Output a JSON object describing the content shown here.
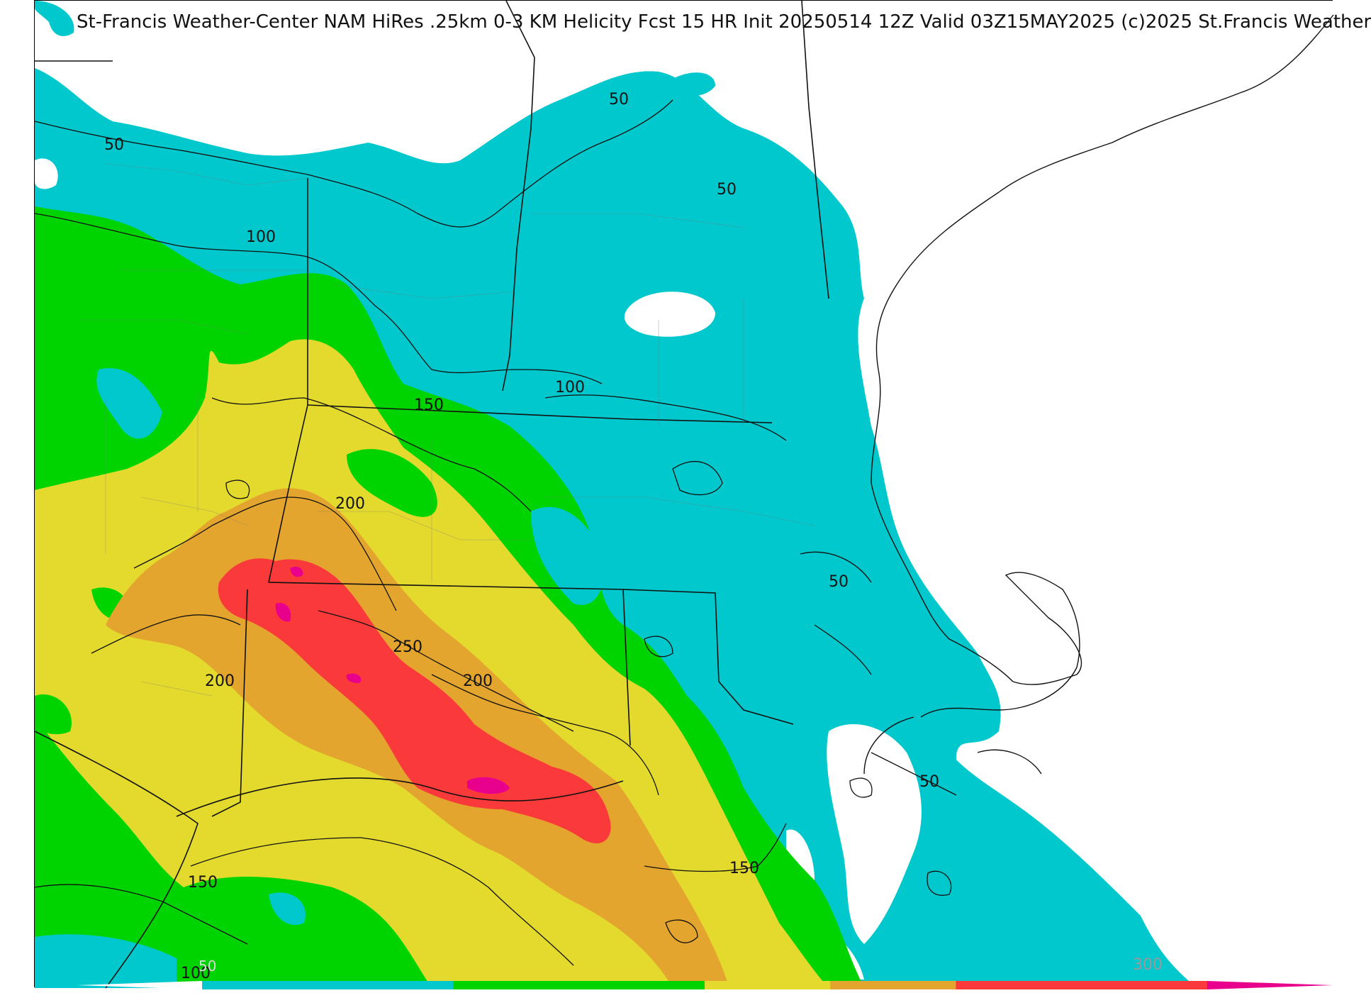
{
  "title": "St-Francis Weather-Center NAM HiRes .25km 0-3 KM Helicity Fcst 15 HR Init 20250514 12Z  Valid 03Z15MAY2025    (c)2025 St.Francis Weather",
  "colors": {
    "cyan": "#00c8cc",
    "green": "#00d400",
    "yellow": "#e4da2e",
    "orange": "#e4a52e",
    "red": "#fa3a3a",
    "magenta": "#e8008c"
  },
  "contour_labels": [
    {
      "id": "c50-a",
      "text": "50"
    },
    {
      "id": "c50-b",
      "text": "50"
    },
    {
      "id": "c50-c",
      "text": "50"
    },
    {
      "id": "c50-d",
      "text": "50"
    },
    {
      "id": "c50-e",
      "text": "50"
    },
    {
      "id": "c100-a",
      "text": "100"
    },
    {
      "id": "c100-b",
      "text": "100"
    },
    {
      "id": "c100-c",
      "text": "100"
    },
    {
      "id": "c150-a",
      "text": "150"
    },
    {
      "id": "c150-b",
      "text": "150"
    },
    {
      "id": "c150-c",
      "text": "150"
    },
    {
      "id": "c200-a",
      "text": "200"
    },
    {
      "id": "c200-b",
      "text": "200"
    },
    {
      "id": "c200-c",
      "text": "200"
    },
    {
      "id": "c250-a",
      "text": "250"
    }
  ],
  "colorbar": {
    "label_300": "300",
    "label_50": "50",
    "segments": [
      "#ffffff",
      "#00c8cc",
      "#00c8cc",
      "#00d400",
      "#00d400",
      "#e4da2e",
      "#e4a52e",
      "#fa3a3a",
      "#fa3a3a",
      "#e8008c"
    ]
  }
}
